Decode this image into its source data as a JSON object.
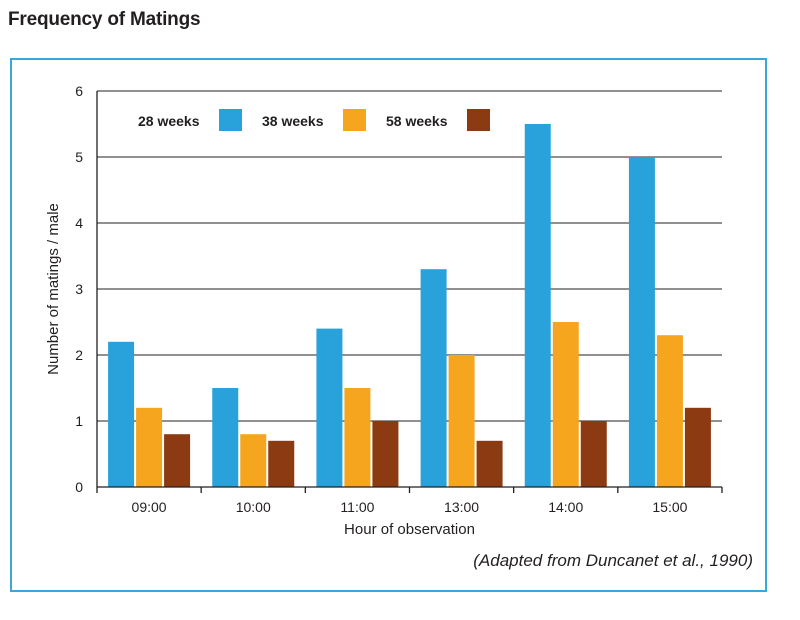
{
  "figure": {
    "title": "Frequency of Matings",
    "source": "(Adapted from Duncanet et al., 1990)"
  },
  "chart_data": {
    "type": "bar",
    "categories": [
      "09:00",
      "10:00",
      "11:00",
      "13:00",
      "14:00",
      "15:00"
    ],
    "series": [
      {
        "name": "28 weeks",
        "color": "#29a2db",
        "values": [
          2.2,
          1.5,
          2.4,
          3.3,
          5.5,
          5.0
        ]
      },
      {
        "name": "38 weeks",
        "color": "#f6a51f",
        "values": [
          1.2,
          0.8,
          1.5,
          2.0,
          2.5,
          2.3
        ]
      },
      {
        "name": "58 weeks",
        "color": "#8b3a12",
        "values": [
          0.8,
          0.7,
          1.0,
          0.7,
          1.0,
          1.2
        ]
      }
    ],
    "xlabel": "Hour of observation",
    "ylabel": "Number of matings / male",
    "ylim": [
      0,
      6
    ],
    "yticks": [
      "0",
      "1",
      "2",
      "3",
      "4",
      "5",
      "6"
    ],
    "grid": true,
    "legend_position": "top-left"
  }
}
